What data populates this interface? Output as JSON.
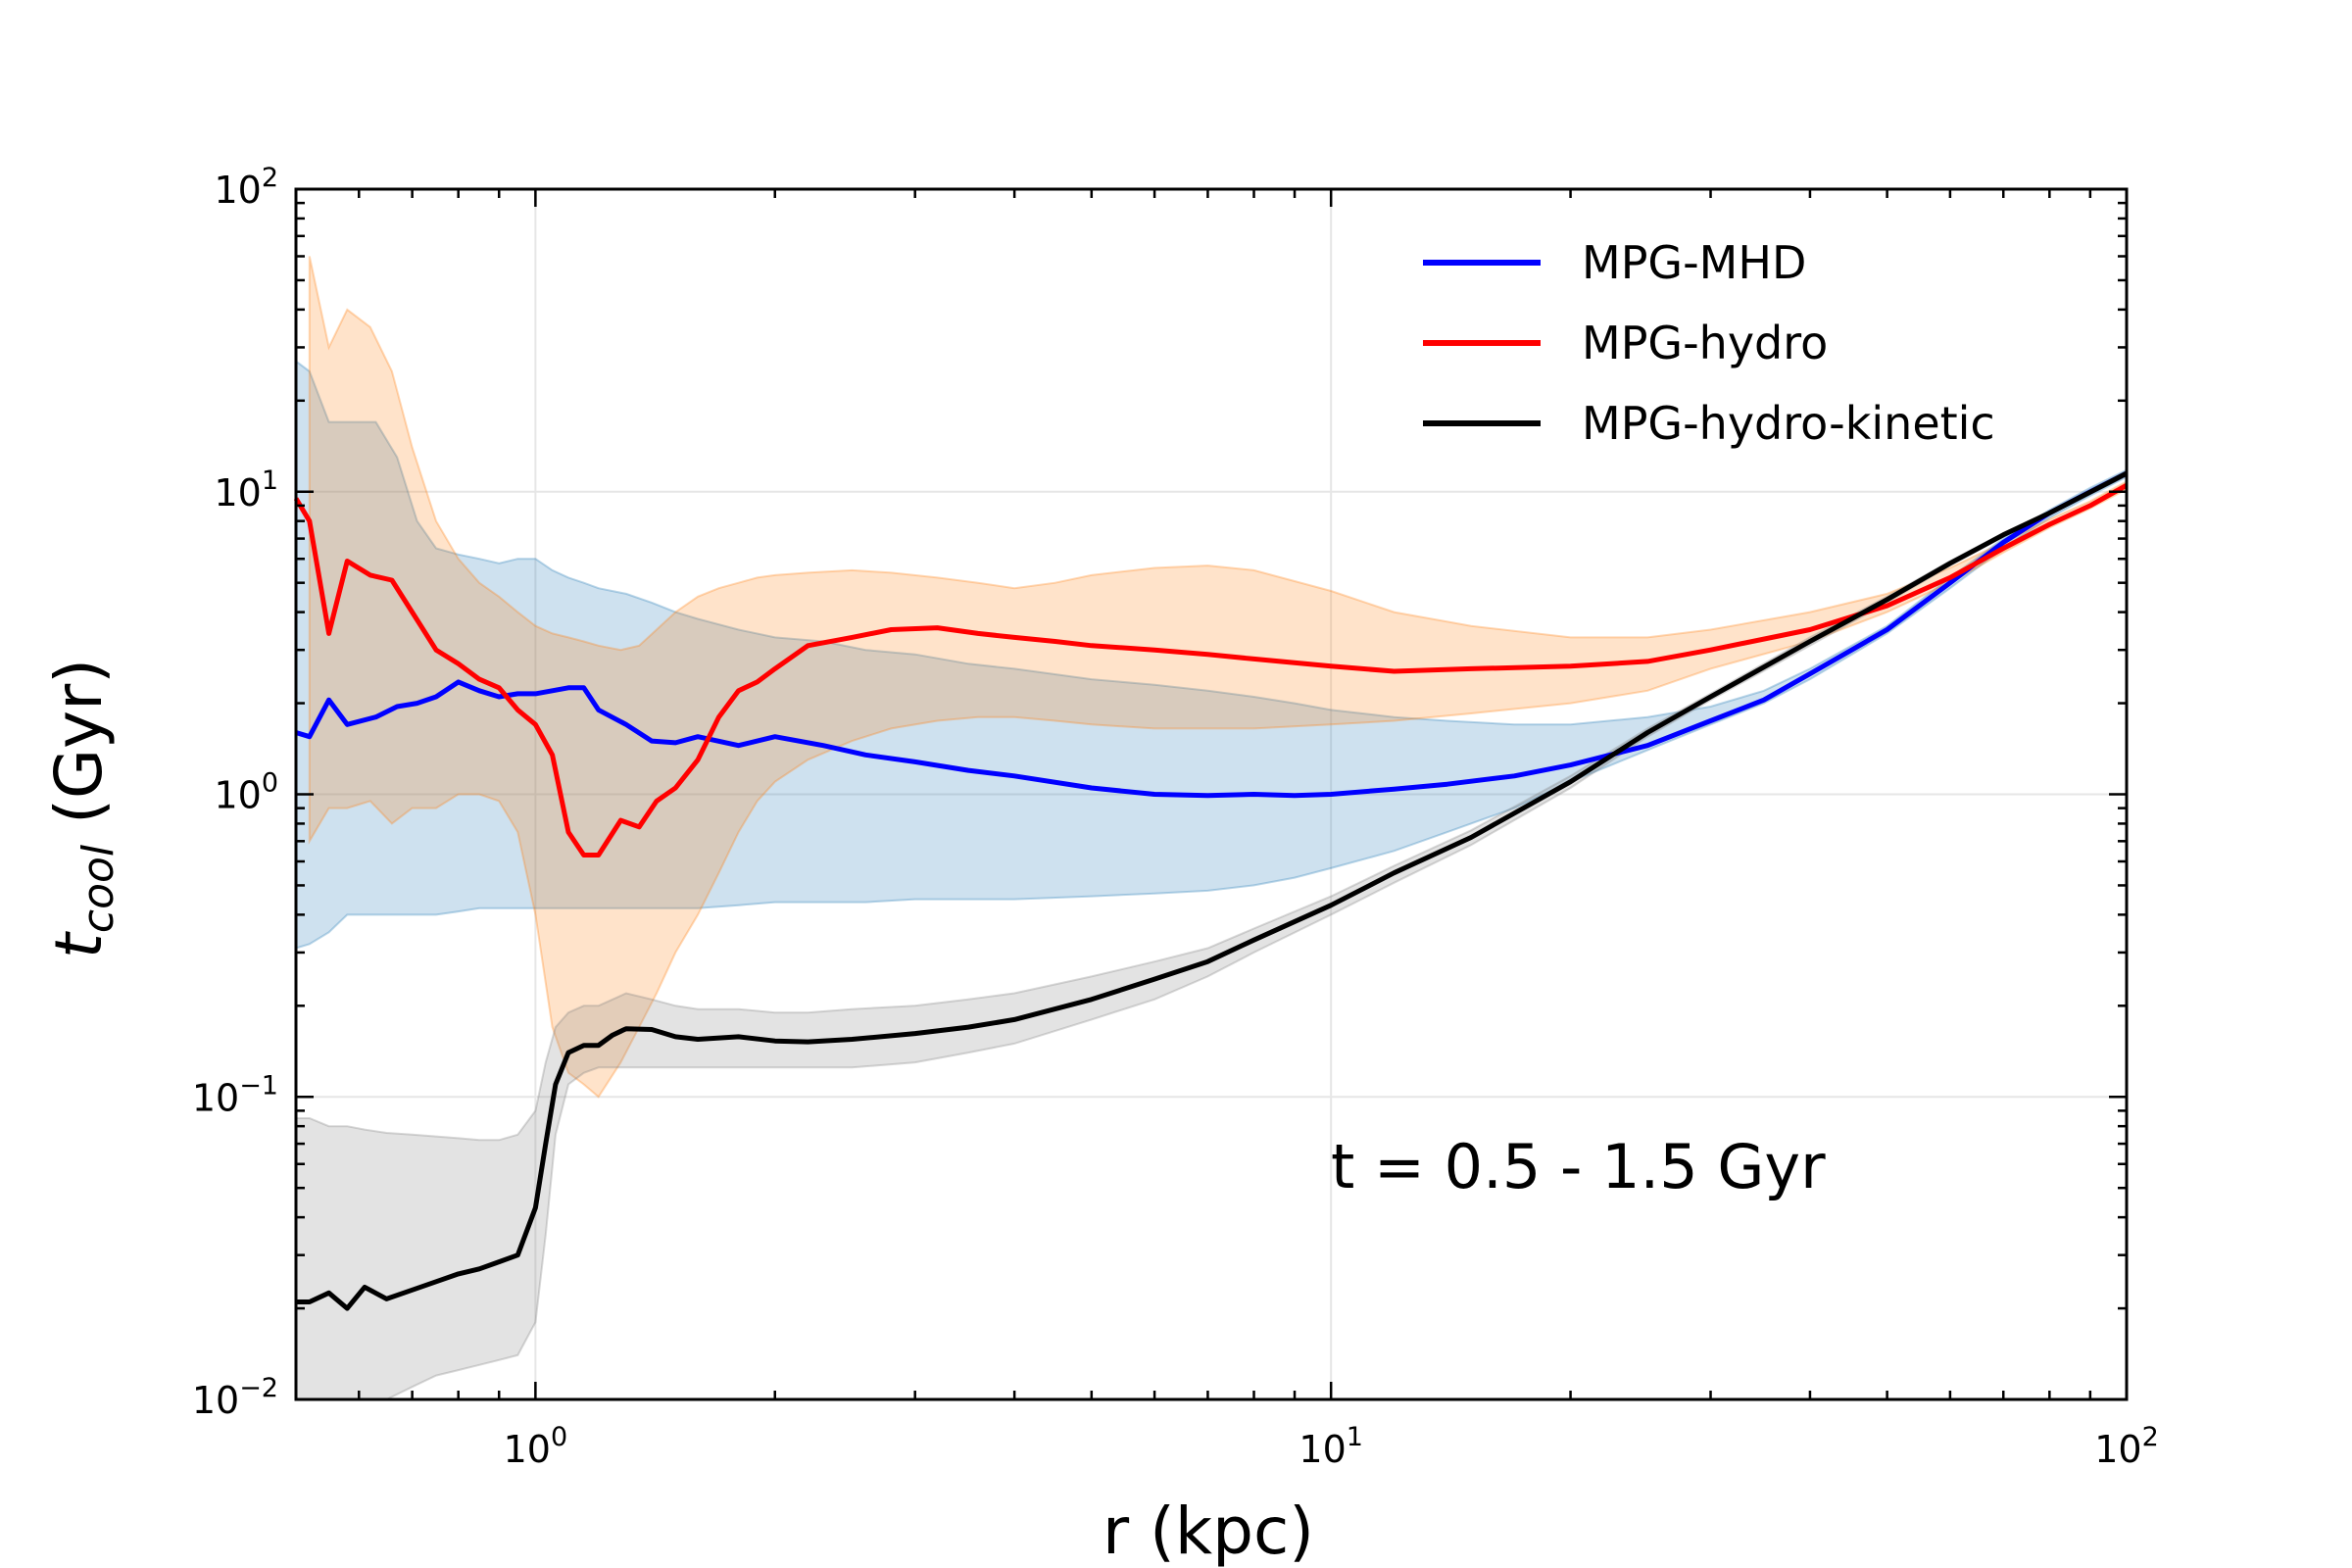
{
  "chart_data": {
    "type": "line",
    "xscale": "log",
    "yscale": "log",
    "xlim": [
      0.5,
      100
    ],
    "ylim": [
      0.01,
      100
    ],
    "xlabel": "r (kpc)",
    "ylabel": {
      "main": "t",
      "sub": "cool",
      "unit": " (Gyr)"
    },
    "x_ticks": [
      {
        "base": "10",
        "exp": "0",
        "value": 1
      },
      {
        "base": "10",
        "exp": "1",
        "value": 10
      },
      {
        "base": "10",
        "exp": "2",
        "value": 100
      }
    ],
    "y_ticks": [
      {
        "base": "10",
        "exp": "−2",
        "value": 0.01
      },
      {
        "base": "10",
        "exp": "−1",
        "value": 0.1
      },
      {
        "base": "10",
        "exp": "0",
        "value": 1
      },
      {
        "base": "10",
        "exp": "1",
        "value": 10
      },
      {
        "base": "10",
        "exp": "2",
        "value": 100
      }
    ],
    "grid": true,
    "legend_position": "top-right",
    "annotation": "t = 0.5 - 1.5 Gyr",
    "series": [
      {
        "name": "MPG-MHD",
        "color": "#0000ff",
        "band_color": "#1f77b4",
        "x": [
          0.5,
          0.52,
          0.55,
          0.58,
          0.63,
          0.67,
          0.71,
          0.75,
          0.8,
          0.85,
          0.9,
          0.95,
          1.0,
          1.05,
          1.1,
          1.15,
          1.2,
          1.3,
          1.4,
          1.5,
          1.6,
          1.8,
          2.0,
          2.3,
          2.6,
          3.0,
          3.5,
          4.0,
          5.0,
          6.0,
          7.0,
          8.0,
          9.0,
          10.0,
          12.0,
          14.0,
          17.0,
          20.0,
          25.0,
          30.0,
          35.0,
          40.0,
          50.0,
          60.0,
          70.0,
          80.0,
          90.0,
          100.0
        ],
        "y": [
          1.6,
          1.55,
          2.05,
          1.7,
          1.8,
          1.95,
          2.0,
          2.1,
          2.35,
          2.2,
          2.1,
          2.15,
          2.15,
          2.2,
          2.25,
          2.25,
          1.9,
          1.7,
          1.5,
          1.48,
          1.55,
          1.45,
          1.55,
          1.45,
          1.35,
          1.28,
          1.2,
          1.15,
          1.05,
          1.0,
          0.99,
          1.0,
          0.99,
          1.0,
          1.04,
          1.08,
          1.15,
          1.25,
          1.45,
          1.75,
          2.05,
          2.5,
          3.5,
          5.0,
          6.8,
          8.5,
          10.0,
          11.5
        ],
        "lower": [
          0.31,
          0.32,
          0.35,
          0.4,
          0.4,
          0.4,
          0.4,
          0.4,
          0.41,
          0.42,
          0.42,
          0.42,
          0.42,
          0.42,
          0.42,
          0.42,
          0.42,
          0.42,
          0.42,
          0.42,
          0.42,
          0.43,
          0.44,
          0.44,
          0.44,
          0.45,
          0.45,
          0.45,
          0.46,
          0.47,
          0.48,
          0.5,
          0.53,
          0.57,
          0.65,
          0.75,
          0.9,
          1.1,
          1.4,
          1.7,
          2.0,
          2.4,
          3.4,
          4.8,
          6.5,
          8.2,
          9.7,
          11.2
        ],
        "upper": [
          27.0,
          25.0,
          17.0,
          17.0,
          17.0,
          13.0,
          8.0,
          6.5,
          6.2,
          6.0,
          5.8,
          6.0,
          6.0,
          5.5,
          5.2,
          5.0,
          4.8,
          4.6,
          4.3,
          4.0,
          3.8,
          3.5,
          3.3,
          3.2,
          3.0,
          2.9,
          2.7,
          2.6,
          2.4,
          2.3,
          2.2,
          2.1,
          2.0,
          1.9,
          1.8,
          1.75,
          1.7,
          1.7,
          1.8,
          1.95,
          2.2,
          2.6,
          3.6,
          5.2,
          7.0,
          8.7,
          10.3,
          11.8
        ]
      },
      {
        "name": "MPG-hydro",
        "color": "#ff0000",
        "band_color": "#ff7f0e",
        "x": [
          0.5,
          0.52,
          0.55,
          0.58,
          0.62,
          0.66,
          0.7,
          0.75,
          0.8,
          0.85,
          0.9,
          0.95,
          1.0,
          1.05,
          1.1,
          1.15,
          1.2,
          1.28,
          1.35,
          1.42,
          1.5,
          1.6,
          1.7,
          1.8,
          1.9,
          2.0,
          2.2,
          2.5,
          2.8,
          3.2,
          3.6,
          4.0,
          4.5,
          5.0,
          6.0,
          7.0,
          8.0,
          10.0,
          12.0,
          15.0,
          20.0,
          25.0,
          30.0,
          40.0,
          50.0,
          60.0,
          70.0,
          80.0,
          90.0,
          100.0
        ],
        "y": [
          9.5,
          8.0,
          3.4,
          5.9,
          5.3,
          5.1,
          4.0,
          3.0,
          2.7,
          2.4,
          2.25,
          1.9,
          1.7,
          1.35,
          0.75,
          0.63,
          0.63,
          0.82,
          0.78,
          0.95,
          1.05,
          1.3,
          1.8,
          2.2,
          2.35,
          2.6,
          3.1,
          3.3,
          3.5,
          3.55,
          3.4,
          3.3,
          3.2,
          3.1,
          3.0,
          2.9,
          2.8,
          2.65,
          2.55,
          2.6,
          2.65,
          2.75,
          3.0,
          3.5,
          4.2,
          5.2,
          6.5,
          7.8,
          9.0,
          10.5
        ],
        "lower": [
          null,
          0.7,
          0.9,
          0.9,
          0.95,
          0.8,
          0.9,
          0.9,
          1.0,
          1.0,
          0.95,
          0.75,
          0.4,
          0.17,
          0.12,
          0.11,
          0.1,
          0.13,
          0.17,
          0.22,
          0.3,
          0.4,
          0.55,
          0.75,
          0.95,
          1.1,
          1.3,
          1.5,
          1.65,
          1.75,
          1.8,
          1.8,
          1.75,
          1.7,
          1.65,
          1.65,
          1.65,
          1.7,
          1.75,
          1.85,
          2.0,
          2.2,
          2.6,
          3.2,
          4.0,
          5.0,
          6.3,
          7.6,
          8.8,
          10.2
        ],
        "upper": [
          null,
          60.0,
          30.0,
          40.0,
          35.0,
          25.0,
          14.0,
          8.0,
          6.0,
          5.0,
          4.5,
          4.0,
          3.6,
          3.4,
          3.3,
          3.2,
          3.1,
          3.0,
          3.1,
          3.5,
          4.0,
          4.5,
          4.8,
          5.0,
          5.2,
          5.3,
          5.4,
          5.5,
          5.4,
          5.2,
          5.0,
          4.8,
          5.0,
          5.3,
          5.6,
          5.7,
          5.5,
          4.7,
          4.0,
          3.6,
          3.3,
          3.3,
          3.5,
          4.0,
          4.6,
          5.6,
          6.8,
          8.1,
          9.3,
          10.8
        ]
      },
      {
        "name": "MPG-hydro-kinetic",
        "color": "#000000",
        "band_color": "#7f7f7f",
        "x": [
          0.5,
          0.52,
          0.55,
          0.58,
          0.61,
          0.65,
          0.7,
          0.75,
          0.8,
          0.85,
          0.9,
          0.95,
          1.0,
          1.03,
          1.06,
          1.1,
          1.15,
          1.2,
          1.25,
          1.3,
          1.4,
          1.5,
          1.6,
          1.8,
          2.0,
          2.2,
          2.5,
          3.0,
          3.5,
          4.0,
          5.0,
          6.0,
          7.0,
          8.0,
          10.0,
          12.0,
          15.0,
          20.0,
          25.0,
          30.0,
          40.0,
          50.0,
          60.0,
          70.0,
          80.0,
          100.0
        ],
        "y": [
          0.021,
          0.021,
          0.0225,
          0.02,
          0.0235,
          0.0215,
          0.023,
          0.0245,
          0.026,
          0.027,
          0.0285,
          0.03,
          0.043,
          0.07,
          0.11,
          0.14,
          0.148,
          0.148,
          0.16,
          0.168,
          0.167,
          0.158,
          0.155,
          0.158,
          0.153,
          0.152,
          0.155,
          0.162,
          0.17,
          0.18,
          0.21,
          0.245,
          0.28,
          0.33,
          0.43,
          0.55,
          0.72,
          1.1,
          1.6,
          2.1,
          3.2,
          4.4,
          5.8,
          7.2,
          8.5,
          11.5
        ],
        "lower": [
          0.01,
          0.01,
          0.01,
          0.01,
          0.01,
          0.01,
          0.011,
          0.012,
          0.0125,
          0.013,
          0.0135,
          0.014,
          0.018,
          0.035,
          0.075,
          0.11,
          0.12,
          0.125,
          0.125,
          0.125,
          0.125,
          0.125,
          0.125,
          0.125,
          0.125,
          0.125,
          0.125,
          0.13,
          0.14,
          0.15,
          0.18,
          0.21,
          0.25,
          0.3,
          0.4,
          0.51,
          0.68,
          1.05,
          1.55,
          2.05,
          3.1,
          4.3,
          5.7,
          7.1,
          8.4,
          11.3
        ],
        "upper": [
          0.085,
          0.085,
          0.08,
          0.08,
          0.078,
          0.076,
          0.075,
          0.074,
          0.073,
          0.072,
          0.072,
          0.075,
          0.09,
          0.13,
          0.17,
          0.19,
          0.2,
          0.2,
          0.21,
          0.22,
          0.21,
          0.2,
          0.195,
          0.195,
          0.19,
          0.19,
          0.195,
          0.2,
          0.21,
          0.22,
          0.25,
          0.28,
          0.31,
          0.36,
          0.46,
          0.58,
          0.76,
          1.15,
          1.65,
          2.15,
          3.3,
          4.5,
          5.9,
          7.3,
          8.6,
          11.7
        ]
      }
    ]
  }
}
